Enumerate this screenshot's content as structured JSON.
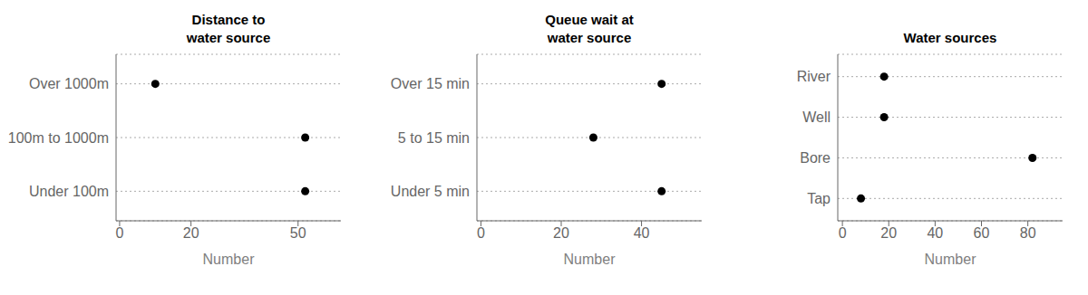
{
  "chart_data": [
    {
      "type": "scatter",
      "title": "Distance to\nwater source",
      "categories": [
        "Over 1000m",
        "100m to 1000m",
        "Under 100m"
      ],
      "values": [
        10,
        52,
        52
      ],
      "xlim": [
        -1,
        62
      ],
      "xticks": [
        0,
        20,
        50
      ],
      "xlabel": "Number",
      "color": "#000000",
      "grid": true
    },
    {
      "type": "scatter",
      "title": "Queue wait at\nwater source",
      "categories": [
        "Over 15 min",
        "5 to 15 min",
        "Under 5 min"
      ],
      "values": [
        45,
        28,
        45
      ],
      "xlim": [
        -1,
        55
      ],
      "xticks": [
        0,
        20,
        40
      ],
      "xlabel": "Number",
      "color": "#000000",
      "grid": true
    },
    {
      "type": "scatter",
      "title": "Water sources",
      "categories": [
        "River",
        "Well",
        "Bore",
        "Tap"
      ],
      "values": [
        18,
        18,
        82,
        8
      ],
      "xlim": [
        -2,
        95
      ],
      "xticks": [
        0,
        20,
        40,
        60,
        80
      ],
      "xlabel": "Number",
      "color": "#000000",
      "grid": true
    }
  ]
}
